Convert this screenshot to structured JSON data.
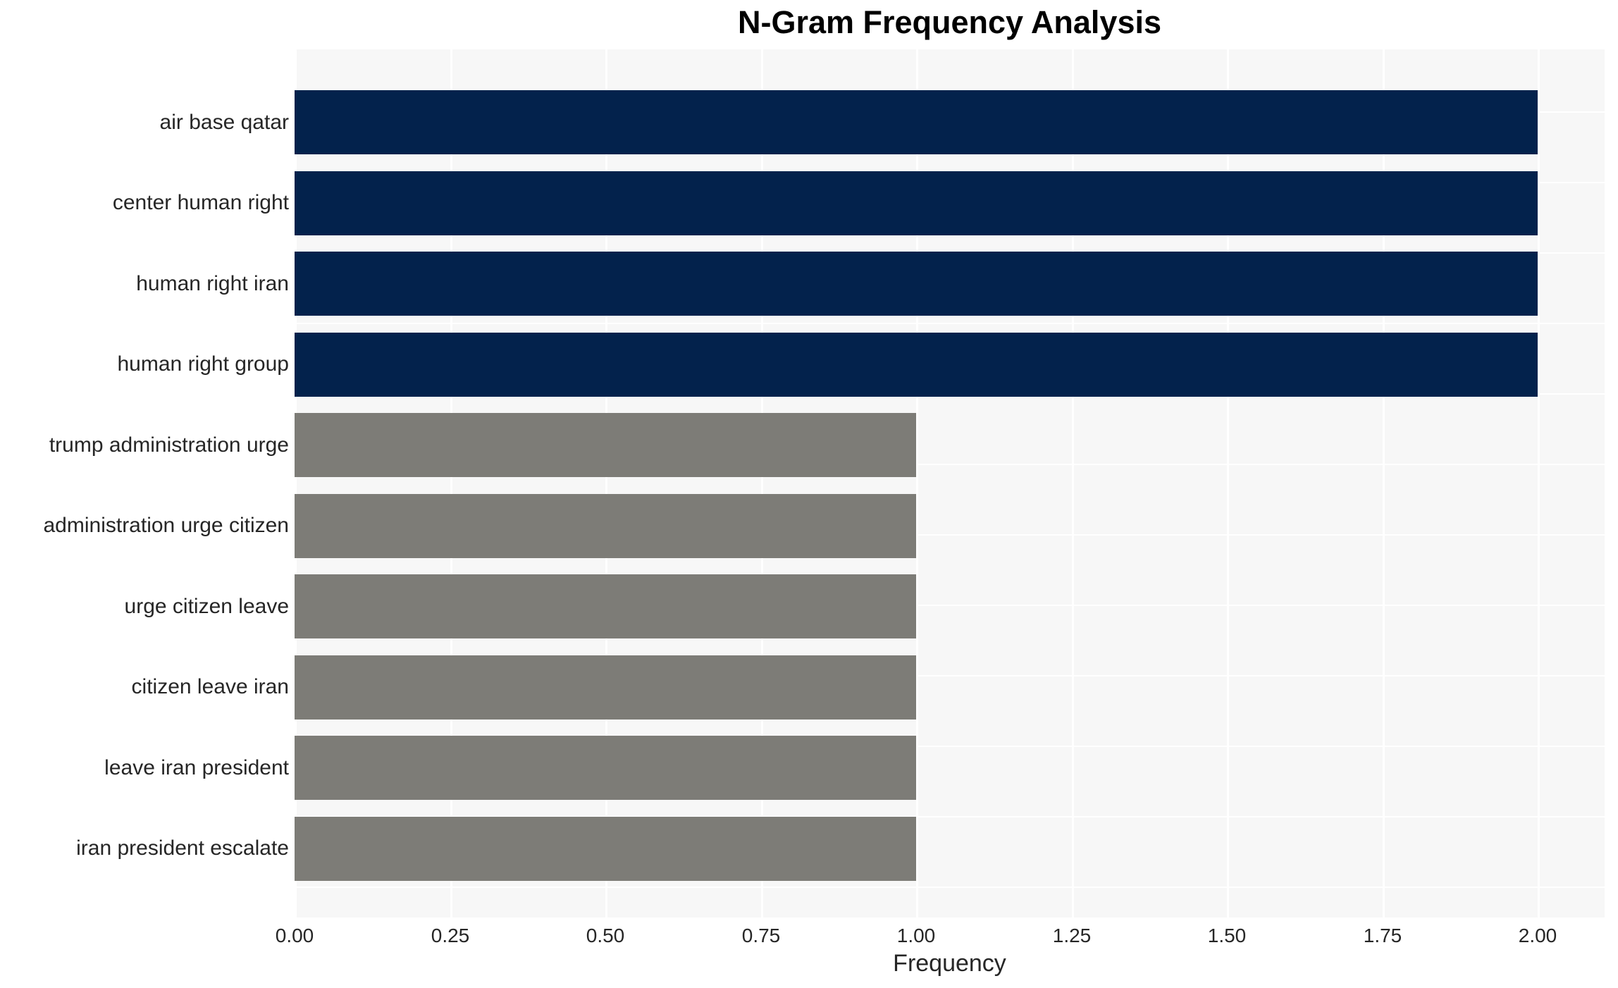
{
  "chart_data": {
    "type": "bar",
    "orientation": "horizontal",
    "title": "N-Gram Frequency Analysis",
    "xlabel": "Frequency",
    "ylabel": "",
    "categories": [
      "air base qatar",
      "center human right",
      "human right iran",
      "human right group",
      "trump administration urge",
      "administration urge citizen",
      "urge citizen leave",
      "citizen leave iran",
      "leave iran president",
      "iran president escalate"
    ],
    "values": [
      2,
      2,
      2,
      2,
      1,
      1,
      1,
      1,
      1,
      1
    ],
    "bar_colors": [
      "#03224c",
      "#03224c",
      "#03224c",
      "#03224c",
      "#7d7c77",
      "#7d7c77",
      "#7d7c77",
      "#7d7c77",
      "#7d7c77",
      "#7d7c77"
    ],
    "xtick_labels": [
      "0.00",
      "0.25",
      "0.50",
      "0.75",
      "1.00",
      "1.25",
      "1.50",
      "1.75",
      "2.00"
    ],
    "xtick_values": [
      0,
      0.25,
      0.5,
      0.75,
      1.0,
      1.25,
      1.5,
      1.75,
      2.0
    ],
    "xlim": [
      0,
      2.107
    ],
    "grid": true,
    "legend": false,
    "colors": {
      "high_frequency_bar": "#03224c",
      "low_frequency_bar": "#7d7c77",
      "plot_background": "#f7f7f7",
      "gridline": "#ffffff",
      "text": "#262626",
      "title_text": "#000000"
    }
  }
}
